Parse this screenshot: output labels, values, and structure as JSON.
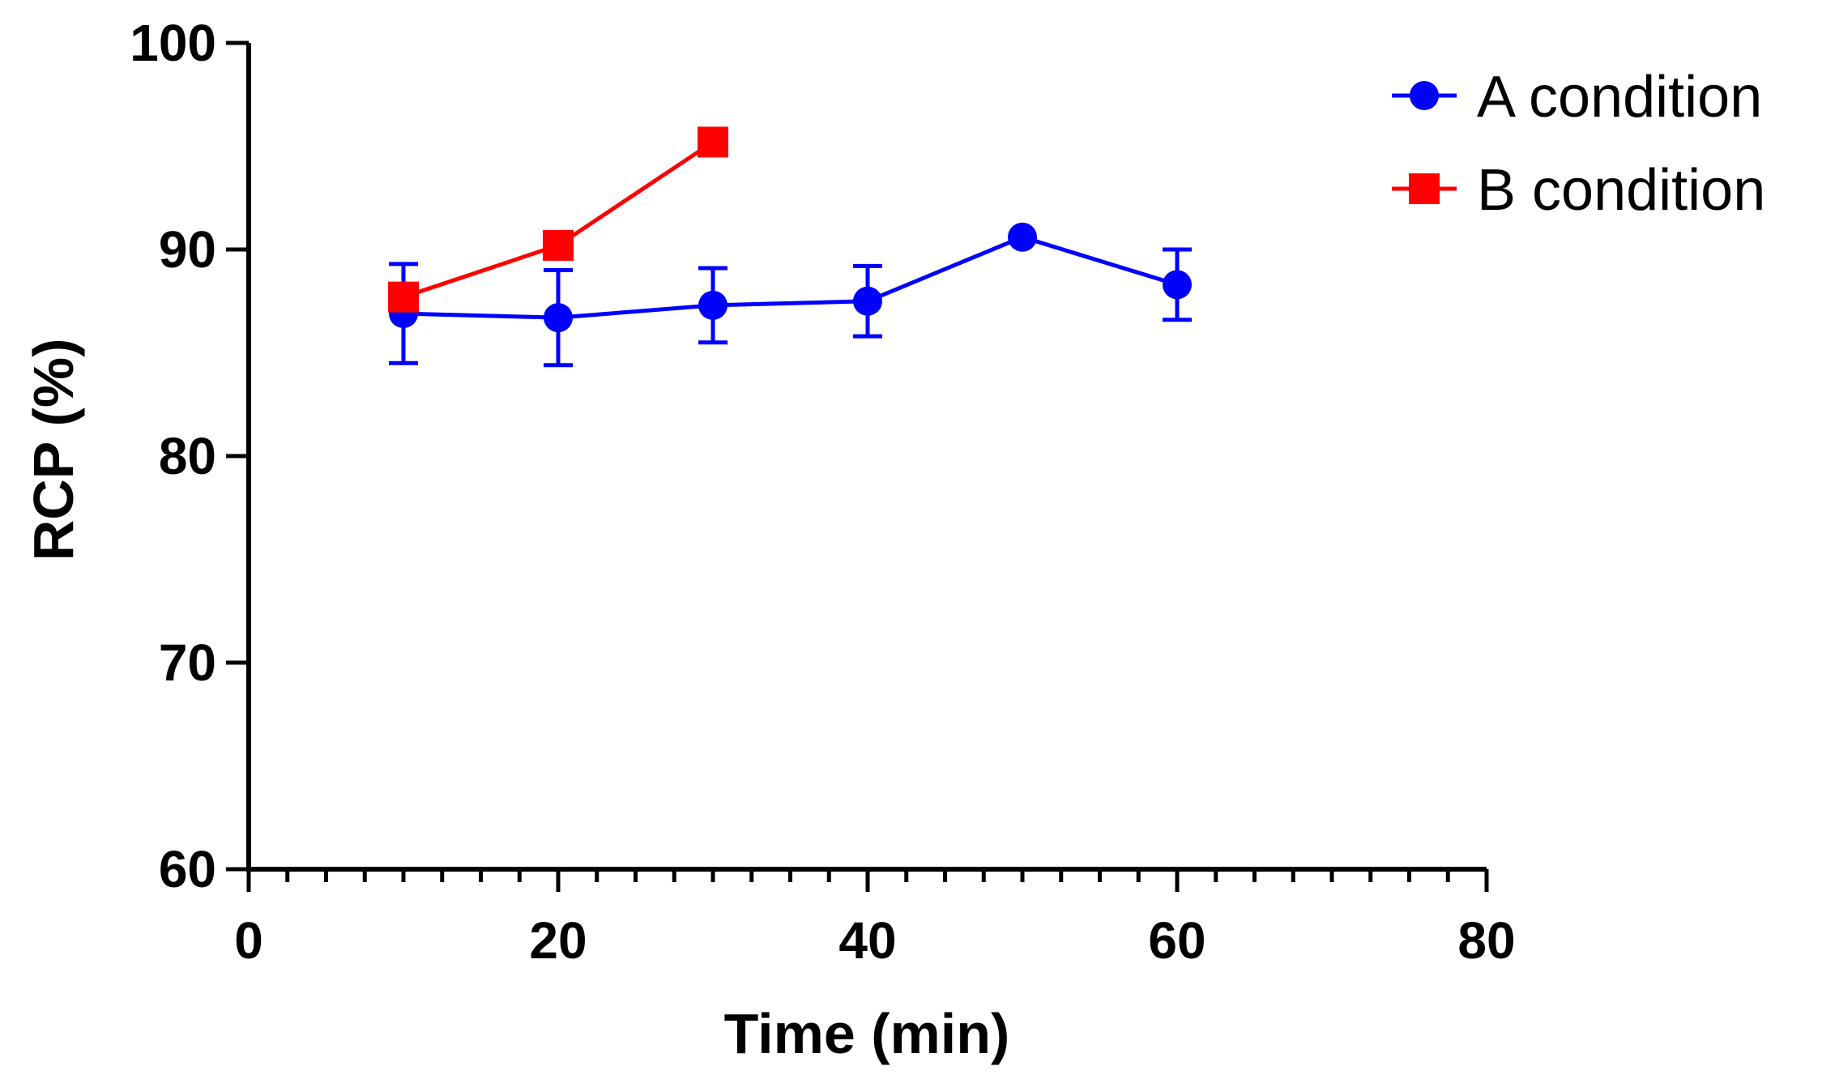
{
  "chart_data": {
    "type": "line",
    "title": "",
    "xlabel": "Time (min)",
    "ylabel": "RCP (%)",
    "xlim": [
      0,
      80
    ],
    "ylim": [
      60,
      100
    ],
    "xticks": [
      0,
      20,
      40,
      60,
      80
    ],
    "yticks": [
      60,
      70,
      80,
      90,
      100
    ],
    "x_minor_step": 2.5,
    "grid": false,
    "legend_position": "top-right",
    "series": [
      {
        "name": "A condition",
        "color": "#0000ff",
        "marker": "circle",
        "x": [
          10,
          20,
          30,
          40,
          50,
          60
        ],
        "y": [
          86.9,
          86.7,
          87.3,
          87.5,
          90.6,
          88.3
        ],
        "error": [
          2.4,
          2.3,
          1.8,
          1.7,
          0,
          1.7
        ]
      },
      {
        "name": "B condition",
        "color": "#ff0000",
        "marker": "square",
        "x": [
          10,
          20,
          30
        ],
        "y": [
          87.7,
          90.2,
          95.2
        ],
        "error": [
          0,
          0,
          0
        ]
      }
    ]
  }
}
